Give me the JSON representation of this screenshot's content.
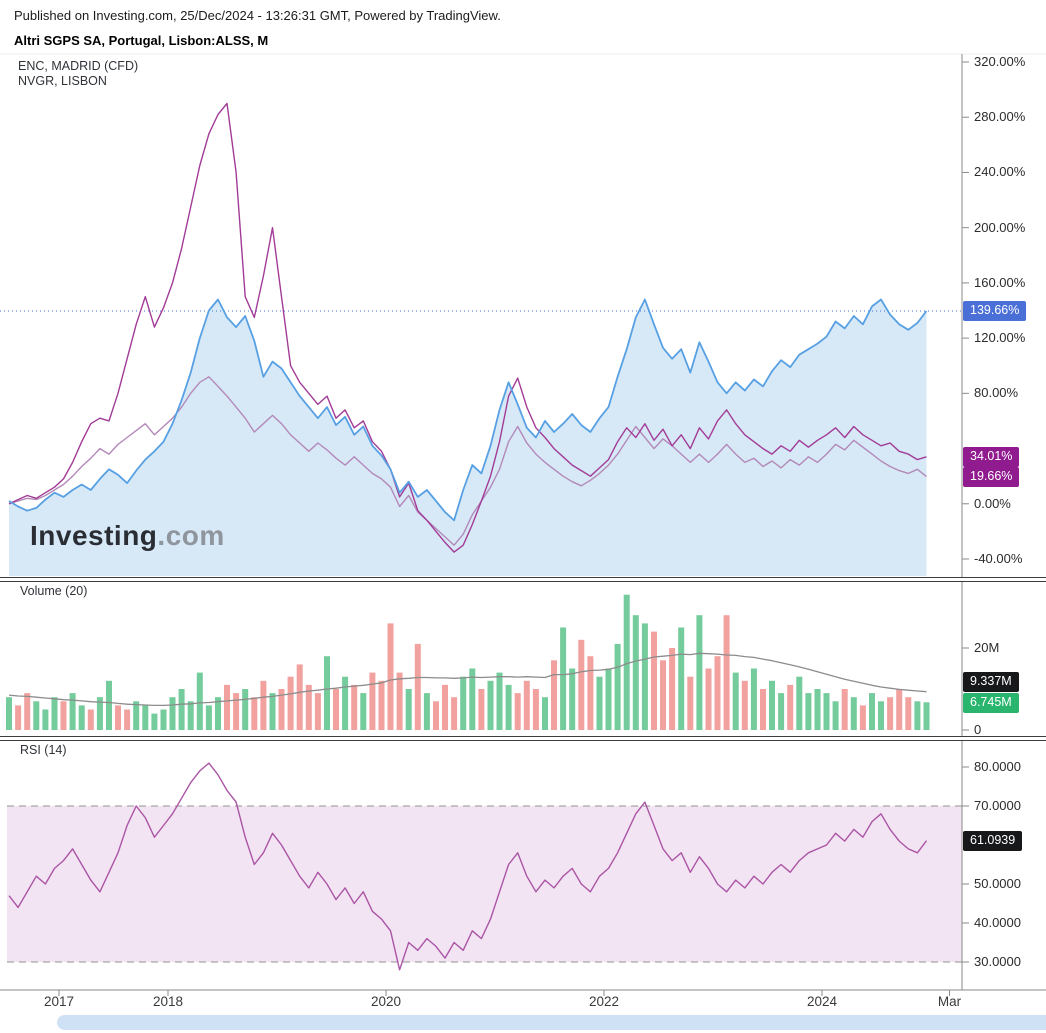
{
  "header": {
    "published_line": "Published on Investing.com, 25/Dec/2024 - 13:26:31 GMT, Powered by TradingView.",
    "instrument_title": "Altri SGPS SA, Portugal, Lisbon:ALSS, M"
  },
  "watermark": {
    "bold": "Investing",
    "light": ".com"
  },
  "colors": {
    "axis_line": "#8a8a8a",
    "separator": "#3d3d3d",
    "scrollbar_thumb": "#cfe1f5",
    "background": "#ffffff"
  },
  "chart_data": {
    "type": "line",
    "symbol": "Lisbon:ALSS",
    "timeframe": "M",
    "x_start_year": 2016.5417,
    "x_step_years": 0.083333,
    "x_axis_ticks": [
      {
        "label": "2017",
        "year": 2017
      },
      {
        "label": "2018",
        "year": 2018
      },
      {
        "label": "2020",
        "year": 2020
      },
      {
        "label": "2022",
        "year": 2022
      },
      {
        "label": "2024",
        "year": 2024
      },
      {
        "label": "Mar",
        "year": 2025.17
      }
    ],
    "panes": [
      {
        "name": "price-percent-change",
        "legend": [
          "ENC, MADRID (CFD)",
          "NVGR, LISBON"
        ],
        "ylim": [
          -60,
          330
        ],
        "axis_labels": [
          {
            "text": "320.00%",
            "value": 320
          },
          {
            "text": "280.00%",
            "value": 280
          },
          {
            "text": "240.00%",
            "value": 240
          },
          {
            "text": "200.00%",
            "value": 200
          },
          {
            "text": "160.00%",
            "value": 160
          },
          {
            "text": "120.00%",
            "value": 120
          },
          {
            "text": "80.00%",
            "value": 80
          },
          {
            "text": "0.00%",
            "value": 0
          },
          {
            "text": "-40.00%",
            "value": -40
          }
        ],
        "badges": [
          {
            "text": "139.66%",
            "value": 139.66,
            "color": "#4a6fd6"
          },
          {
            "text": "34.01%",
            "value": 34.01,
            "color": "#8f1b8f"
          },
          {
            "text": "19.66%",
            "value": 19.66,
            "color": "#8f1b8f"
          }
        ],
        "reference_line": {
          "value": 139.66,
          "color": "#4a6fd6"
        },
        "series": [
          {
            "name": "ALSS percent change",
            "style": "area",
            "line_color": "#57a0e3",
            "fill_color": "#d7e9f7",
            "last_value": 139.66,
            "values": [
              2,
              -2,
              -5,
              -3,
              3,
              8,
              5,
              10,
              14,
              10,
              18,
              25,
              21,
              15,
              24,
              32,
              38,
              45,
              58,
              75,
              95,
              120,
              140,
              148,
              135,
              128,
              136,
              118,
              92,
              103,
              98,
              88,
              78,
              70,
              62,
              70,
              57,
              63,
              50,
              56,
              42,
              35,
              25,
              8,
              16,
              5,
              10,
              2,
              -6,
              -12,
              10,
              28,
              22,
              42,
              68,
              88,
              72,
              55,
              48,
              60,
              52,
              58,
              65,
              57,
              52,
              62,
              70,
              92,
              112,
              135,
              148,
              130,
              113,
              105,
              112,
              95,
              117,
              103,
              88,
              80,
              88,
              82,
              90,
              85,
              96,
              104,
              99,
              108,
              112,
              116,
              121,
              132,
              127,
              136,
              130,
              143,
              148,
              137,
              130,
              126,
              131,
              139.66
            ]
          },
          {
            "name": "ENC, MADRID (CFD)",
            "style": "line",
            "line_color": "#a23b97",
            "last_value": 34.01,
            "values": [
              0,
              3,
              6,
              4,
              8,
              12,
              18,
              30,
              45,
              58,
              62,
              60,
              80,
              105,
              130,
              150,
              128,
              142,
              160,
              185,
              215,
              245,
              268,
              282,
              290,
              240,
              150,
              135,
              165,
              200,
              150,
              100,
              88,
              80,
              72,
              78,
              62,
              68,
              55,
              60,
              45,
              38,
              25,
              5,
              15,
              -5,
              -12,
              -20,
              -28,
              -35,
              -30,
              -15,
              2,
              20,
              45,
              78,
              91,
              70,
              55,
              48,
              40,
              34,
              28,
              24,
              20,
              26,
              32,
              45,
              55,
              48,
              58,
              46,
              54,
              42,
              50,
              40,
              55,
              47,
              60,
              68,
              58,
              50,
              45,
              40,
              36,
              42,
              38,
              46,
              41,
              46,
              50,
              55,
              48,
              56,
              50,
              46,
              42,
              44,
              38,
              36,
              32,
              34.01
            ]
          },
          {
            "name": "NVGR, LISBON",
            "style": "line",
            "line_color": "#b389b9",
            "last_value": 19.66,
            "values": [
              0,
              2,
              4,
              3,
              6,
              10,
              14,
              20,
              27,
              33,
              40,
              36,
              43,
              48,
              53,
              58,
              50,
              56,
              62,
              70,
              80,
              88,
              92,
              85,
              78,
              70,
              62,
              52,
              58,
              64,
              58,
              50,
              44,
              38,
              44,
              39,
              33,
              28,
              34,
              28,
              22,
              18,
              12,
              -2,
              6,
              -6,
              -12,
              -18,
              -24,
              -30,
              -22,
              -8,
              2,
              12,
              25,
              45,
              56,
              44,
              36,
              30,
              25,
              20,
              16,
              13,
              17,
              22,
              28,
              36,
              46,
              56,
              48,
              40,
              47,
              42,
              36,
              30,
              36,
              30,
              36,
              43,
              36,
              30,
              33,
              27,
              31,
              26,
              32,
              28,
              34,
              30,
              36,
              43,
              39,
              46,
              41,
              36,
              31,
              27,
              24,
              22,
              25,
              19.66
            ]
          }
        ]
      },
      {
        "name": "volume",
        "label": "Volume (20)",
        "ylim": [
          0,
          35
        ],
        "axis_labels": [
          {
            "text": "20M",
            "value": 20
          },
          {
            "text": "0",
            "value": 0
          }
        ],
        "badges": [
          {
            "text": "9.337M",
            "value": 9.337,
            "color": "#16181a"
          },
          {
            "text": "6.745M",
            "value": 6.745,
            "color": "#29b56d"
          }
        ],
        "bars": {
          "up_color": "#74cb9b",
          "down_color": "#f2a29e",
          "updown": "grrgggrggrggrrggggggggggrrgrrgrrrrrgrgrgrrrrgrgrrrggrgggrrrgrggrrggggggrrrgrgrrrgrgrggrgggggrgrggrrrgg",
          "values_millions": [
            8,
            6,
            9,
            7,
            5,
            8,
            7,
            9,
            6,
            5,
            8,
            12,
            6,
            5,
            7,
            6,
            4,
            5,
            8,
            10,
            7,
            14,
            6,
            8,
            11,
            9,
            10,
            8,
            12,
            9,
            10,
            13,
            16,
            11,
            9,
            18,
            10,
            13,
            11,
            9,
            14,
            12,
            26,
            14,
            10,
            21,
            9,
            7,
            11,
            8,
            13,
            15,
            10,
            12,
            14,
            11,
            9,
            12,
            10,
            8,
            17,
            25,
            15,
            22,
            18,
            13,
            15,
            21,
            33,
            28,
            26,
            24,
            17,
            20,
            25,
            13,
            28,
            15,
            18,
            28,
            14,
            12,
            15,
            10,
            12,
            9,
            11,
            13,
            9,
            10,
            9,
            7,
            10,
            8,
            6,
            9,
            7,
            8,
            10,
            8,
            7,
            6.745
          ]
        },
        "ma": {
          "period": 20,
          "color": "#8c8c8c",
          "last_value": 9.337,
          "values_millions": [
            8.5,
            8.3,
            8.2,
            8.0,
            7.8,
            7.6,
            7.4,
            7.3,
            7.1,
            6.9,
            6.8,
            6.7,
            6.5,
            6.3,
            6.2,
            6.1,
            6.0,
            6.0,
            6.1,
            6.3,
            6.4,
            6.6,
            6.7,
            6.9,
            7.1,
            7.3,
            7.5,
            7.7,
            8.0,
            8.2,
            8.5,
            8.8,
            9.2,
            9.5,
            9.7,
            10.0,
            10.2,
            10.5,
            10.7,
            10.9,
            11.2,
            11.5,
            12.2,
            12.5,
            12.6,
            12.8,
            12.8,
            12.7,
            12.7,
            12.6,
            12.7,
            12.9,
            12.8,
            12.9,
            13.0,
            13.0,
            12.9,
            13.0,
            12.9,
            12.8,
            13.5,
            13.5,
            13.7,
            14.2,
            14.5,
            14.6,
            14.8,
            15.3,
            16.2,
            16.8,
            17.3,
            17.8,
            18.0,
            18.2,
            18.5,
            18.4,
            18.7,
            18.6,
            18.5,
            18.3,
            18.2,
            17.9,
            17.7,
            17.3,
            16.9,
            16.4,
            15.9,
            15.4,
            14.8,
            14.2,
            13.6,
            13.0,
            12.4,
            11.9,
            11.4,
            10.9,
            10.5,
            10.2,
            9.9,
            9.7,
            9.5,
            9.337
          ]
        }
      },
      {
        "name": "rsi",
        "label": "RSI (14)",
        "ylim": [
          27,
          85
        ],
        "axis_labels": [
          {
            "text": "80.0000",
            "value": 80
          },
          {
            "text": "70.0000",
            "value": 70
          },
          {
            "text": "50.0000",
            "value": 50
          },
          {
            "text": "40.0000",
            "value": 40
          },
          {
            "text": "30.0000",
            "value": 30
          }
        ],
        "badges": [
          {
            "text": "61.0939",
            "value": 61.0939,
            "color": "#16181a"
          }
        ],
        "band": {
          "upper": 70,
          "lower": 30,
          "fill": "#f2e4f3",
          "line_color": "#a6a6a6"
        },
        "series": {
          "name": "RSI",
          "color": "#ab55a5",
          "last_value": 61.0939,
          "values": [
            47,
            44,
            48,
            52,
            50,
            54,
            56,
            59,
            55,
            51,
            48,
            53,
            58,
            65,
            70,
            67,
            62,
            65,
            68,
            72,
            76,
            79,
            81,
            78,
            74,
            71,
            62,
            55,
            58,
            63,
            60,
            56,
            52,
            49,
            53,
            50,
            46,
            49,
            45,
            48,
            43,
            41,
            38,
            28,
            35,
            33,
            36,
            34,
            31,
            35,
            33,
            38,
            36,
            41,
            48,
            55,
            58,
            52,
            48,
            51,
            49,
            52,
            54,
            50,
            48,
            52,
            54,
            58,
            63,
            68,
            71,
            65,
            59,
            56,
            58,
            53,
            57,
            54,
            50,
            48,
            51,
            49,
            52,
            50,
            53,
            55,
            53,
            56,
            58,
            59,
            60,
            63,
            61,
            64,
            62,
            66,
            68,
            64,
            61,
            59,
            58,
            61.0939
          ]
        }
      }
    ]
  }
}
